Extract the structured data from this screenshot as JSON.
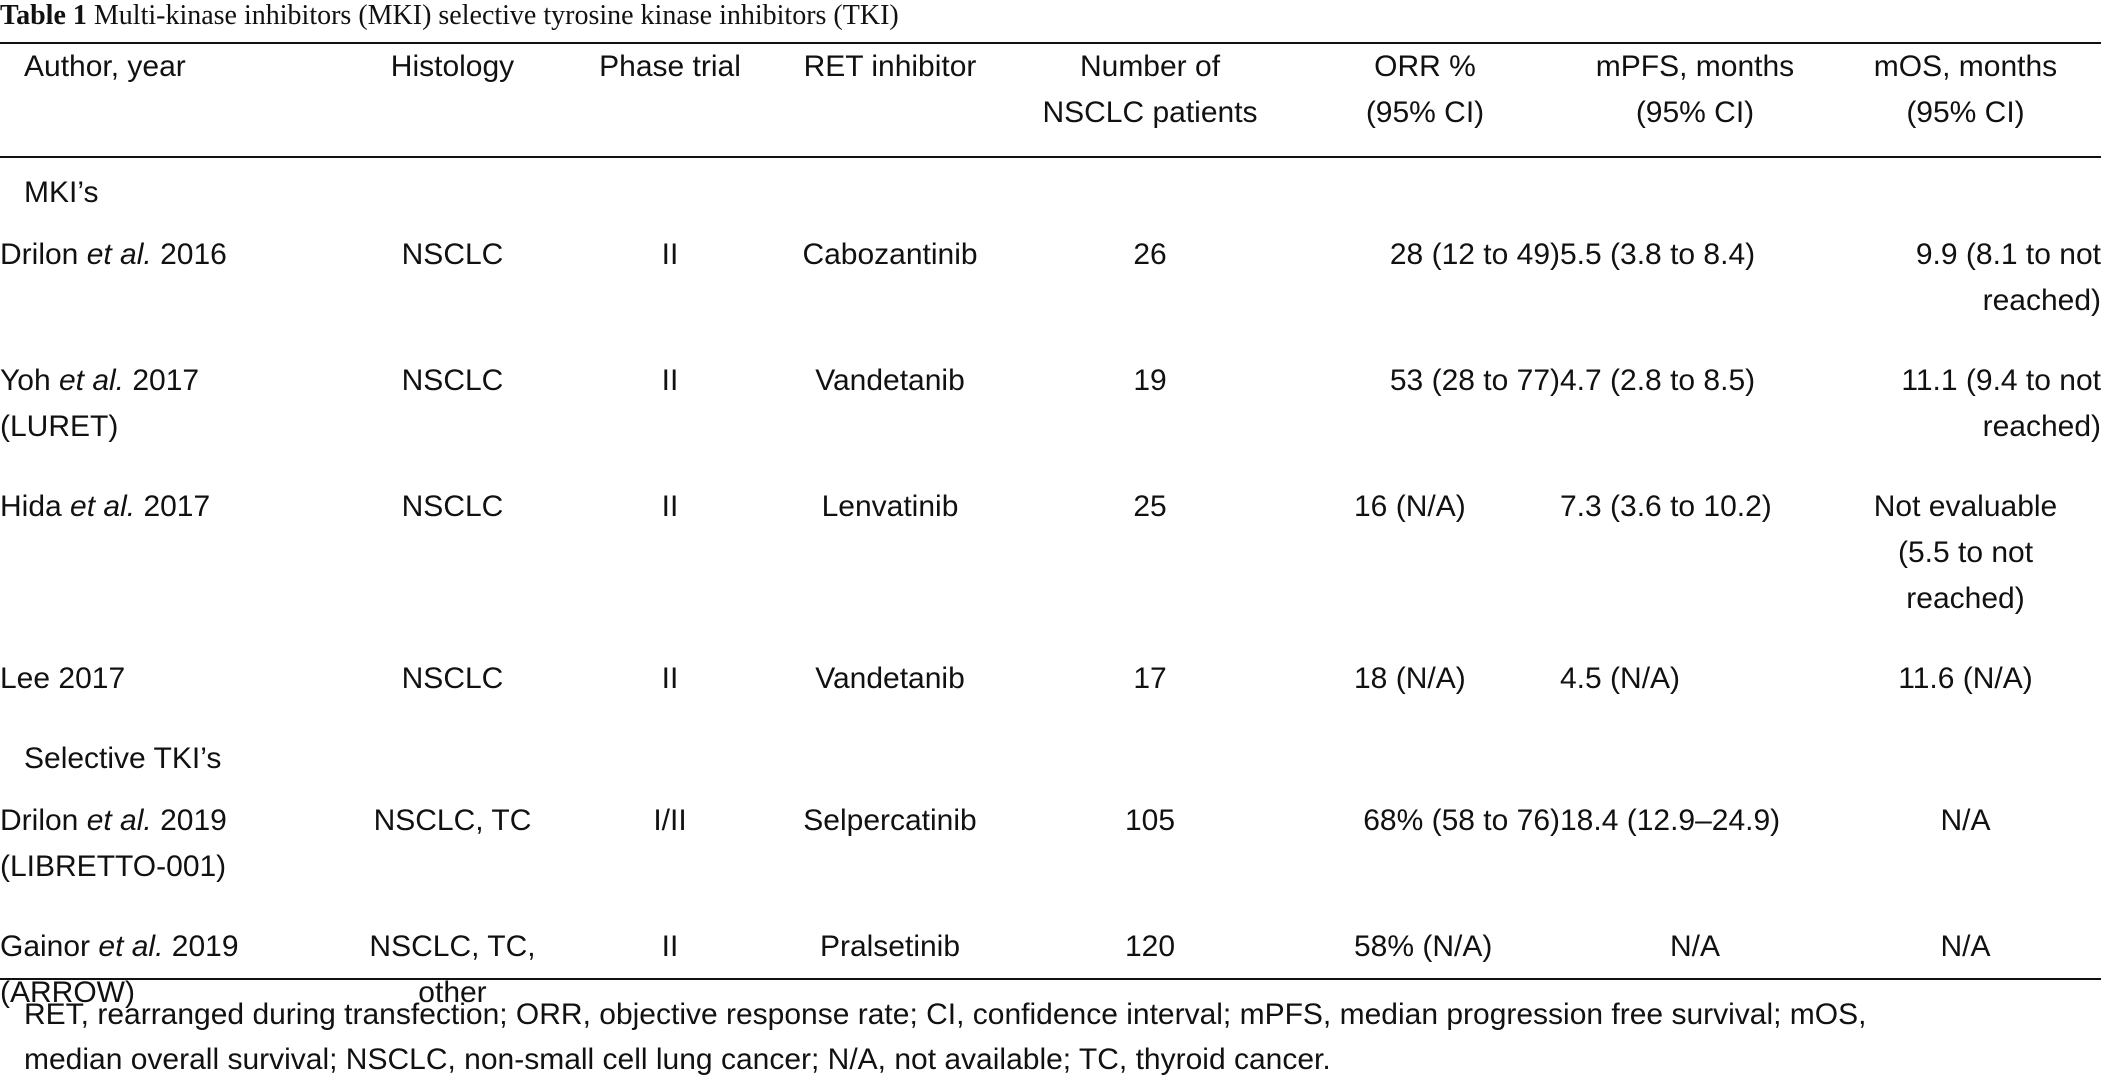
{
  "caption": {
    "label": "Table 1",
    "text": "Multi-kinase inhibitors (MKI) selective tyrosine kinase inhibitors (TKI)"
  },
  "header": {
    "author": "Author, year",
    "histology": "Histology",
    "phase": "Phase trial",
    "inhibitor": "RET inhibitor",
    "patients_1": "Number of",
    "patients_2": "NSCLC patients",
    "orr_1": "ORR %",
    "orr_2": "(95% CI)",
    "pfs_1": "mPFS, months",
    "pfs_2": "(95% CI)",
    "os_1": "mOS, months",
    "os_2": "(95% CI)"
  },
  "sections": [
    {
      "title": "MKI’s",
      "rows": [
        {
          "author": "Drilon",
          "etal": "et al.",
          "year": "2016",
          "trial": "",
          "histology": "NSCLC",
          "histology_2": "",
          "phase": "II",
          "inhibitor": "Cabozantinib",
          "patients": "26",
          "orr": "28 (12 to 49)",
          "pfs": "5.5 (3.8 to 8.4)",
          "os_1": "9.9 (8.1 to not",
          "os_2": "reached)",
          "os_3": ""
        },
        {
          "author": "Yoh",
          "etal": "et al.",
          "year": "2017",
          "trial": "(LURET)",
          "histology": "NSCLC",
          "histology_2": "",
          "phase": "II",
          "inhibitor": "Vandetanib",
          "patients": "19",
          "orr": "53 (28 to 77)",
          "pfs": "4.7 (2.8 to 8.5)",
          "os_1": "11.1 (9.4 to not",
          "os_2": "reached)",
          "os_3": ""
        },
        {
          "author": "Hida",
          "etal": "et al.",
          "year": "2017",
          "trial": "",
          "histology": "NSCLC",
          "histology_2": "",
          "phase": "II",
          "inhibitor": "Lenvatinib",
          "patients": "25",
          "orr": "16 (N/A)",
          "pfs": "7.3 (3.6 to 10.2)",
          "os_1": "Not evaluable",
          "os_2": "(5.5 to not",
          "os_3": "reached)"
        },
        {
          "author": "Lee",
          "etal": "",
          "year": "2017",
          "trial": "",
          "histology": "NSCLC",
          "histology_2": "",
          "phase": "II",
          "inhibitor": "Vandetanib",
          "patients": "17",
          "orr": "18 (N/A)",
          "pfs": "4.5 (N/A)",
          "os_1": "11.6 (N/A)",
          "os_2": "",
          "os_3": ""
        }
      ]
    },
    {
      "title": "Selective TKI’s",
      "rows": [
        {
          "author": "Drilon",
          "etal": "et al.",
          "year": "2019",
          "trial": "(LIBRETTO-001)",
          "histology": "NSCLC, TC",
          "histology_2": "",
          "phase": "I/II",
          "inhibitor": "Selpercatinib",
          "patients": "105",
          "orr": "68% (58 to 76)",
          "pfs": "18.4 (12.9–24.9)",
          "os_1": "N/A",
          "os_2": "",
          "os_3": ""
        },
        {
          "author": "Gainor",
          "etal": "et al.",
          "year": "2019",
          "trial": "(ARROW)",
          "histology": "NSCLC, TC,",
          "histology_2": "other",
          "phase": "II",
          "inhibitor": "Pralsetinib",
          "patients": "120",
          "orr": "58% (N/A)",
          "pfs": "N/A",
          "os_1": "N/A",
          "os_2": "",
          "os_3": ""
        }
      ]
    }
  ],
  "footnote": {
    "line_1": "RET, rearranged during transfection; ORR, objective response rate; CI, confidence interval; mPFS, median progression free survival; mOS,",
    "line_2": "median overall survival; NSCLC, non-small cell lung cancer; N/A, not available; TC, thyroid cancer."
  }
}
